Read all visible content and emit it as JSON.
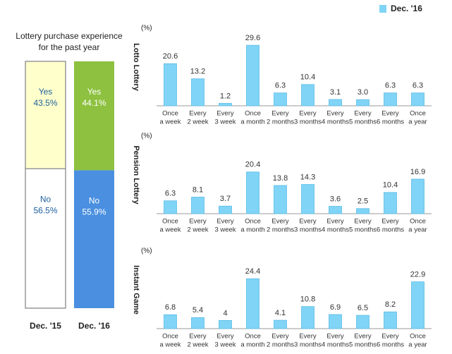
{
  "legend": {
    "name": "Dec. '16",
    "color": "#80d4f6"
  },
  "chart_data": [
    {
      "type": "stacked_bar",
      "title": [
        "Lottery purchase experience",
        "for the past year"
      ],
      "categories": [
        "Dec. '15",
        "Dec. '16"
      ],
      "ylim": [
        0,
        100
      ],
      "series": [
        {
          "name": "Yes",
          "colors": [
            "#ffffcc",
            "#8dc13f"
          ],
          "values": [
            43.5,
            44.1
          ],
          "value_labels": [
            "43.5%",
            "44.1%"
          ]
        },
        {
          "name": "No",
          "colors": [
            "#ffffff",
            "#4a8fe0"
          ],
          "values": [
            56.5,
            55.9
          ],
          "value_labels": [
            "56.5%",
            "55.9%"
          ]
        }
      ]
    },
    {
      "type": "bar",
      "ylabel": "Lotto Lottery",
      "unit": "(%)",
      "ylim": [
        0,
        30
      ],
      "categories": [
        [
          "Once",
          "a week"
        ],
        [
          "Every",
          "2 week"
        ],
        [
          "Every",
          "3 week"
        ],
        [
          "Once",
          "a month"
        ],
        [
          "Every",
          "2 months"
        ],
        [
          "Every",
          "3 months"
        ],
        [
          "Every",
          "4 months"
        ],
        [
          "Every",
          "5 months"
        ],
        [
          "Every",
          "6 months"
        ],
        [
          "Once",
          "a year"
        ]
      ],
      "values": [
        20.6,
        13.2,
        1.2,
        29.6,
        6.3,
        10.4,
        3.1,
        3.0,
        6.3,
        6.3
      ],
      "value_labels": [
        "20.6",
        "13.2",
        "1.2",
        "29.6",
        "6.3",
        "10.4",
        "3.1",
        "3.0",
        "6.3",
        "6.3"
      ]
    },
    {
      "type": "bar",
      "ylabel": "Pension Lottery",
      "unit": "(%)",
      "ylim": [
        0,
        30
      ],
      "categories": [
        [
          "Once",
          "a week"
        ],
        [
          "Every",
          "2 week"
        ],
        [
          "Every",
          "3 week"
        ],
        [
          "Once",
          "a month"
        ],
        [
          "Every",
          "2 months"
        ],
        [
          "Every",
          "3 months"
        ],
        [
          "Every",
          "4 months"
        ],
        [
          "Every",
          "5 months"
        ],
        [
          "Every",
          "6 months"
        ],
        [
          "Once",
          "a year"
        ]
      ],
      "values": [
        6.3,
        8.1,
        3.7,
        20.4,
        13.8,
        14.3,
        3.6,
        2.5,
        10.4,
        16.9
      ]
    },
    {
      "type": "bar",
      "ylabel": "Instant Game",
      "unit": "(%)",
      "ylim": [
        0,
        30
      ],
      "categories": [
        [
          "Once",
          "a week"
        ],
        [
          "Every",
          "2 week"
        ],
        [
          "Every",
          "3 week"
        ],
        [
          "Once",
          "a month"
        ],
        [
          "Every",
          "2 months"
        ],
        [
          "Every",
          "3 months"
        ],
        [
          "Every",
          "4 months"
        ],
        [
          "Every",
          "5 months"
        ],
        [
          "Every",
          "6 months"
        ],
        [
          "Once",
          "a year"
        ]
      ],
      "values": [
        6.8,
        5.4,
        4.0,
        24.4,
        4.1,
        10.8,
        6.9,
        6.5,
        8.2,
        22.9
      ]
    }
  ]
}
